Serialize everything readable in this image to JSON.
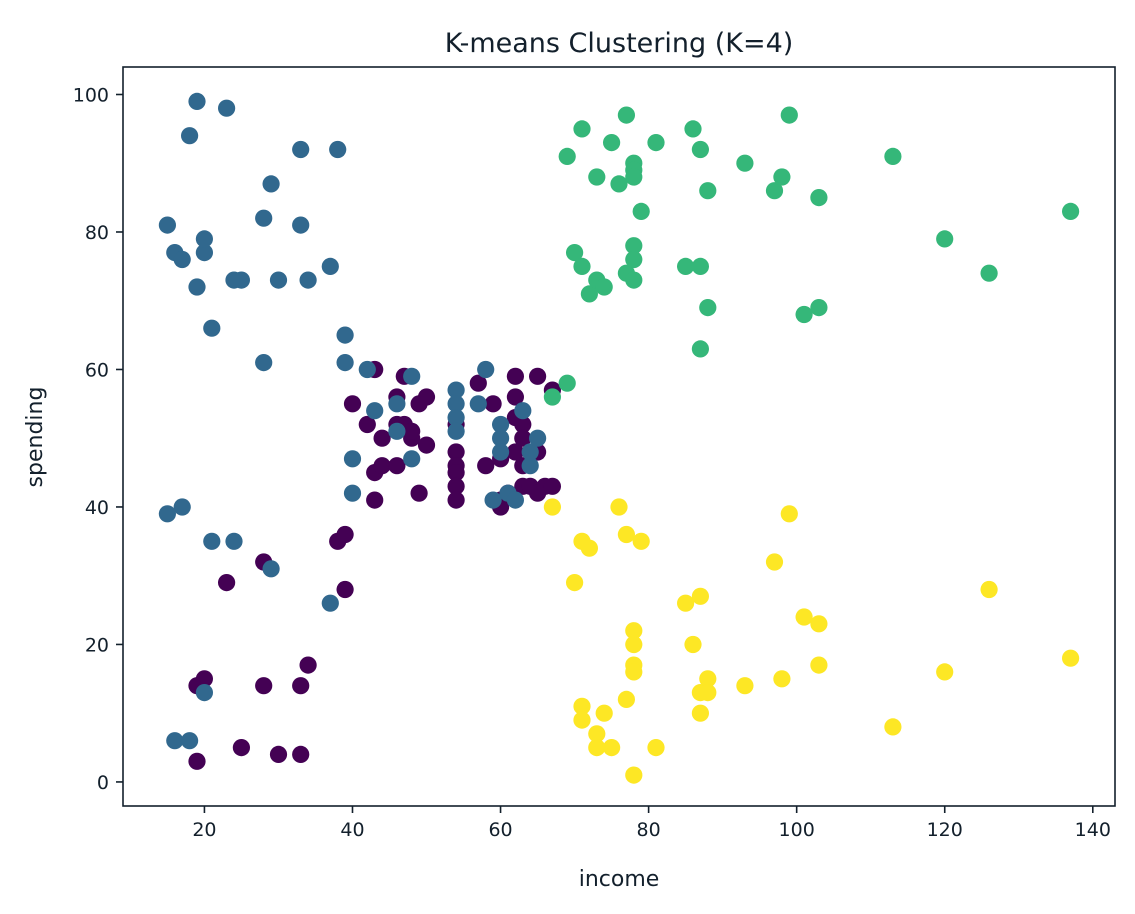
{
  "chart_data": {
    "type": "scatter",
    "title": "K-means Clustering (K=4)",
    "xlabel": "income",
    "ylabel": "spending",
    "xlim": [
      9,
      143
    ],
    "ylim": [
      -3.5,
      104
    ],
    "xticks": [
      20,
      40,
      60,
      80,
      100,
      120,
      140
    ],
    "yticks": [
      0,
      20,
      40,
      60,
      80,
      100
    ],
    "grid": false,
    "legend": "none",
    "series": [
      {
        "color": "#440154",
        "points": [
          [
            19,
            3
          ],
          [
            19,
            14
          ],
          [
            20,
            15
          ],
          [
            25,
            5
          ],
          [
            30,
            4
          ],
          [
            33,
            4
          ],
          [
            33,
            14
          ],
          [
            34,
            17
          ],
          [
            28,
            14
          ],
          [
            23,
            29
          ],
          [
            28,
            32
          ],
          [
            38,
            35
          ],
          [
            39,
            36
          ],
          [
            39,
            28
          ],
          [
            40,
            55
          ],
          [
            42,
            52
          ],
          [
            43,
            60
          ],
          [
            43,
            45
          ],
          [
            43,
            41
          ],
          [
            44,
            50
          ],
          [
            44,
            46
          ],
          [
            46,
            52
          ],
          [
            46,
            56
          ],
          [
            46,
            46
          ],
          [
            47,
            59
          ],
          [
            47,
            52
          ],
          [
            48,
            50
          ],
          [
            48,
            51
          ],
          [
            49,
            55
          ],
          [
            49,
            42
          ],
          [
            50,
            56
          ],
          [
            50,
            49
          ],
          [
            54,
            52
          ],
          [
            54,
            48
          ],
          [
            54,
            46
          ],
          [
            54,
            45
          ],
          [
            54,
            43
          ],
          [
            54,
            41
          ],
          [
            57,
            58
          ],
          [
            58,
            46
          ],
          [
            59,
            55
          ],
          [
            60,
            47
          ],
          [
            60,
            41
          ],
          [
            60,
            40
          ],
          [
            61,
            42
          ],
          [
            62,
            59
          ],
          [
            62,
            56
          ],
          [
            62,
            53
          ],
          [
            62,
            48
          ],
          [
            63,
            52
          ],
          [
            63,
            50
          ],
          [
            63,
            46
          ],
          [
            63,
            43
          ],
          [
            64,
            43
          ],
          [
            65,
            59
          ],
          [
            65,
            48
          ],
          [
            65,
            42
          ],
          [
            66,
            43
          ],
          [
            67,
            57
          ],
          [
            67,
            43
          ]
        ]
      },
      {
        "color": "#31688e",
        "points": [
          [
            15,
            39
          ],
          [
            15,
            81
          ],
          [
            16,
            6
          ],
          [
            16,
            77
          ],
          [
            17,
            40
          ],
          [
            17,
            76
          ],
          [
            18,
            6
          ],
          [
            18,
            94
          ],
          [
            19,
            99
          ],
          [
            19,
            72
          ],
          [
            20,
            77
          ],
          [
            20,
            79
          ],
          [
            20,
            13
          ],
          [
            21,
            66
          ],
          [
            21,
            35
          ],
          [
            23,
            98
          ],
          [
            24,
            35
          ],
          [
            24,
            73
          ],
          [
            25,
            73
          ],
          [
            28,
            82
          ],
          [
            28,
            61
          ],
          [
            29,
            87
          ],
          [
            29,
            31
          ],
          [
            30,
            73
          ],
          [
            33,
            92
          ],
          [
            33,
            81
          ],
          [
            34,
            73
          ],
          [
            37,
            75
          ],
          [
            37,
            26
          ],
          [
            38,
            92
          ],
          [
            39,
            65
          ],
          [
            39,
            61
          ],
          [
            40,
            47
          ],
          [
            40,
            42
          ],
          [
            42,
            60
          ],
          [
            43,
            54
          ],
          [
            46,
            55
          ],
          [
            46,
            51
          ],
          [
            48,
            59
          ],
          [
            48,
            47
          ],
          [
            54,
            57
          ],
          [
            54,
            55
          ],
          [
            54,
            53
          ],
          [
            54,
            51
          ],
          [
            58,
            60
          ],
          [
            57,
            55
          ],
          [
            59,
            41
          ],
          [
            60,
            52
          ],
          [
            60,
            50
          ],
          [
            60,
            48
          ],
          [
            61,
            42
          ],
          [
            62,
            41
          ],
          [
            63,
            54
          ],
          [
            64,
            46
          ],
          [
            64,
            48
          ],
          [
            65,
            50
          ]
        ]
      },
      {
        "color": "#35b779",
        "points": [
          [
            69,
            91
          ],
          [
            69,
            58
          ],
          [
            70,
            77
          ],
          [
            71,
            95
          ],
          [
            71,
            75
          ],
          [
            72,
            71
          ],
          [
            73,
            88
          ],
          [
            73,
            73
          ],
          [
            74,
            72
          ],
          [
            75,
            93
          ],
          [
            76,
            87
          ],
          [
            77,
            97
          ],
          [
            77,
            74
          ],
          [
            78,
            90
          ],
          [
            78,
            89
          ],
          [
            78,
            88
          ],
          [
            78,
            78
          ],
          [
            78,
            76
          ],
          [
            78,
            73
          ],
          [
            79,
            83
          ],
          [
            81,
            93
          ],
          [
            85,
            75
          ],
          [
            86,
            95
          ],
          [
            87,
            92
          ],
          [
            87,
            75
          ],
          [
            87,
            63
          ],
          [
            88,
            86
          ],
          [
            88,
            69
          ],
          [
            93,
            90
          ],
          [
            97,
            86
          ],
          [
            98,
            88
          ],
          [
            99,
            97
          ],
          [
            101,
            68
          ],
          [
            103,
            85
          ],
          [
            103,
            69
          ],
          [
            113,
            91
          ],
          [
            120,
            79
          ],
          [
            126,
            74
          ],
          [
            137,
            83
          ],
          [
            67,
            56
          ]
        ]
      },
      {
        "color": "#fde725",
        "points": [
          [
            67,
            40
          ],
          [
            70,
            29
          ],
          [
            71,
            35
          ],
          [
            71,
            11
          ],
          [
            71,
            9
          ],
          [
            72,
            34
          ],
          [
            73,
            7
          ],
          [
            73,
            5
          ],
          [
            74,
            10
          ],
          [
            75,
            5
          ],
          [
            76,
            40
          ],
          [
            77,
            36
          ],
          [
            77,
            12
          ],
          [
            78,
            22
          ],
          [
            78,
            20
          ],
          [
            78,
            17
          ],
          [
            78,
            16
          ],
          [
            78,
            1
          ],
          [
            79,
            35
          ],
          [
            81,
            5
          ],
          [
            85,
            26
          ],
          [
            86,
            20
          ],
          [
            87,
            27
          ],
          [
            87,
            13
          ],
          [
            87,
            10
          ],
          [
            88,
            15
          ],
          [
            88,
            13
          ],
          [
            93,
            14
          ],
          [
            97,
            32
          ],
          [
            98,
            15
          ],
          [
            99,
            39
          ],
          [
            101,
            24
          ],
          [
            103,
            23
          ],
          [
            103,
            17
          ],
          [
            113,
            8
          ],
          [
            120,
            16
          ],
          [
            126,
            28
          ],
          [
            137,
            18
          ]
        ]
      }
    ]
  }
}
